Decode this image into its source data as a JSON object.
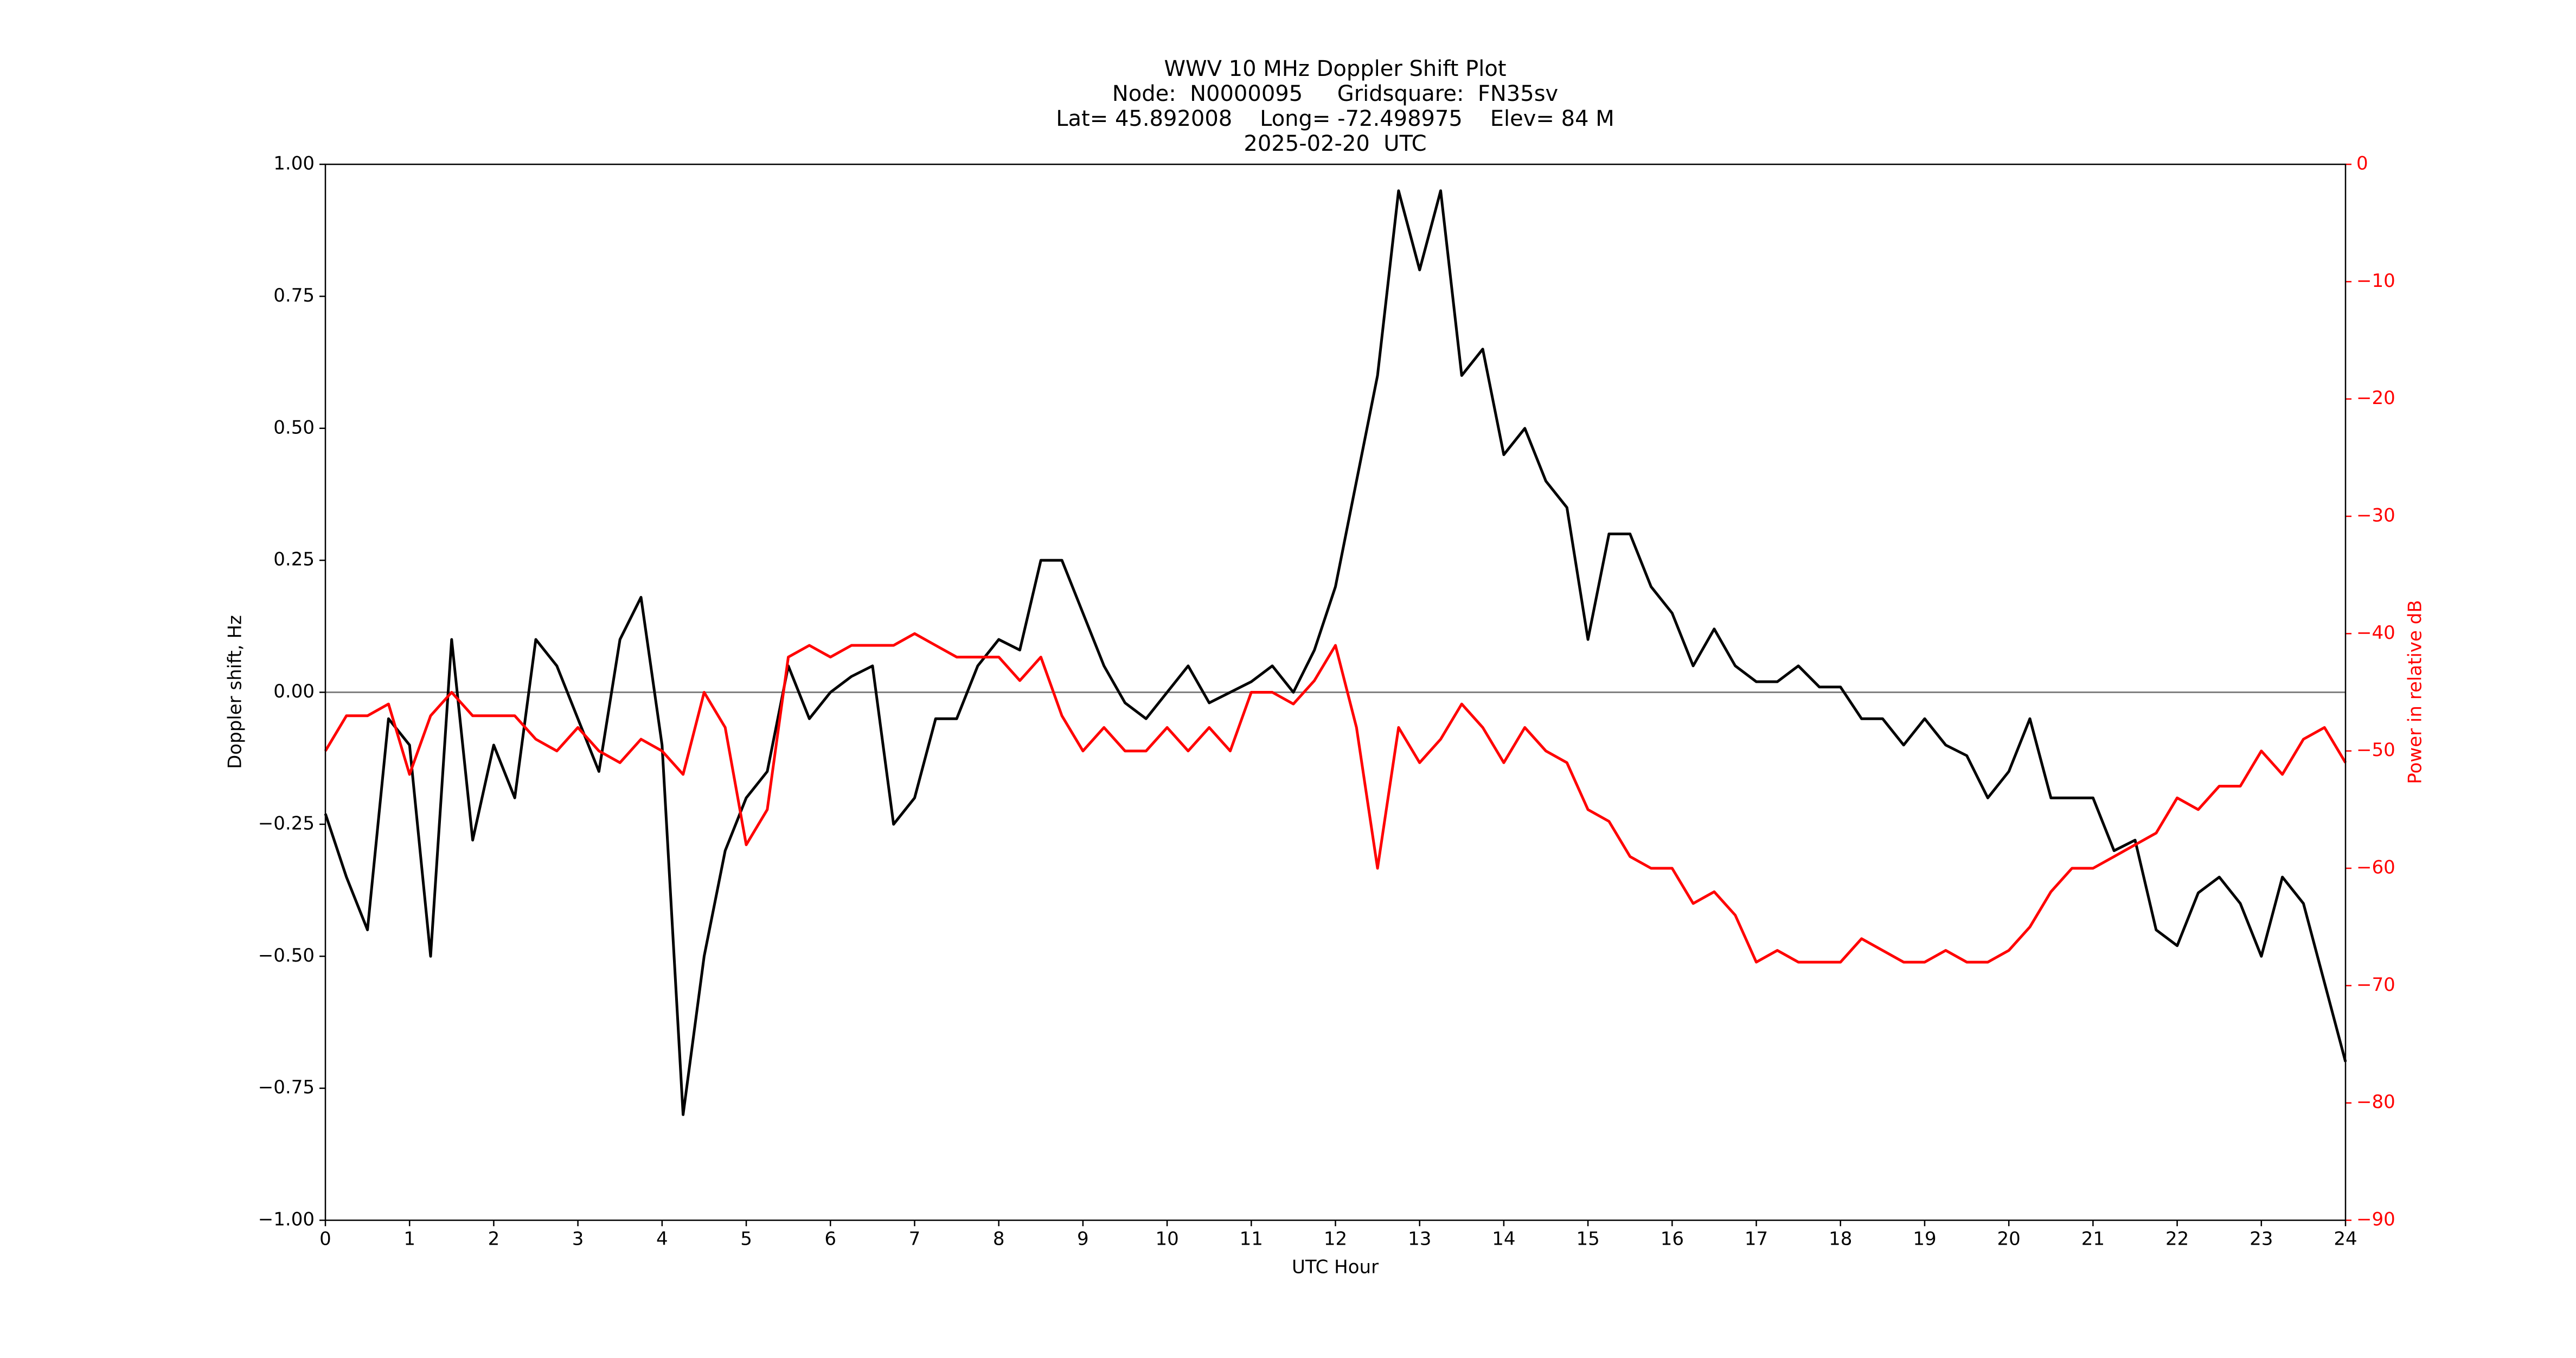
{
  "chart_data": {
    "type": "line",
    "title": [
      "WWV 10 MHz Doppler Shift Plot",
      "Node:  N0000095     Gridsquare:  FN35sv",
      "Lat= 45.892008    Long= -72.498975    Elev= 84 M",
      "2025-02-20  UTC"
    ],
    "x_label": "UTC Hour",
    "y_label": "Doppler shift, Hz",
    "y2_label": "Power in relative dB",
    "x": [
      0,
      0.25,
      0.5,
      0.75,
      1,
      1.25,
      1.5,
      1.75,
      2,
      2.25,
      2.5,
      2.75,
      3,
      3.25,
      3.5,
      3.75,
      4,
      4.25,
      4.5,
      4.75,
      5,
      5.25,
      5.5,
      5.75,
      6,
      6.25,
      6.5,
      6.75,
      7,
      7.25,
      7.5,
      7.75,
      8,
      8.25,
      8.5,
      8.75,
      9,
      9.25,
      9.5,
      9.75,
      10,
      10.25,
      10.5,
      10.75,
      11,
      11.25,
      11.5,
      11.75,
      12,
      12.25,
      12.5,
      12.75,
      13,
      13.25,
      13.5,
      13.75,
      14,
      14.25,
      14.5,
      14.75,
      15,
      15.25,
      15.5,
      15.75,
      16,
      16.25,
      16.5,
      16.75,
      17,
      17.25,
      17.5,
      17.75,
      18,
      18.25,
      18.5,
      18.75,
      19,
      19.25,
      19.5,
      19.75,
      20,
      20.25,
      20.5,
      20.75,
      21,
      21.25,
      21.5,
      21.75,
      22,
      22.25,
      22.5,
      22.75,
      23,
      23.25,
      23.5,
      23.75,
      24
    ],
    "series": [
      {
        "color": "#000000",
        "values": [
          -0.23,
          -0.35,
          -0.45,
          -0.05,
          -0.1,
          -0.5,
          0.1,
          -0.28,
          -0.1,
          -0.2,
          0.1,
          0.05,
          -0.05,
          -0.15,
          0.1,
          0.18,
          -0.1,
          -0.8,
          -0.5,
          -0.3,
          -0.2,
          -0.15,
          0.05,
          -0.05,
          0.0,
          0.03,
          0.05,
          -0.25,
          -0.2,
          -0.05,
          -0.05,
          0.05,
          0.1,
          0.08,
          0.25,
          0.25,
          0.15,
          0.05,
          -0.02,
          -0.05,
          0.0,
          0.05,
          -0.02,
          0.0,
          0.02,
          0.05,
          0.0,
          0.08,
          0.2,
          0.4,
          0.6,
          0.95,
          0.8,
          0.95,
          0.6,
          0.65,
          0.45,
          0.5,
          0.4,
          0.35,
          0.1,
          0.3,
          0.3,
          0.2,
          0.15,
          0.05,
          0.12,
          0.05,
          0.02,
          0.02,
          0.05,
          0.01,
          0.01,
          -0.05,
          -0.05,
          -0.1,
          -0.05,
          -0.1,
          -0.12,
          -0.2,
          -0.15,
          -0.05,
          -0.2,
          -0.2,
          -0.2,
          -0.3,
          -0.28,
          -0.45,
          -0.48,
          -0.38,
          -0.35,
          -0.4,
          -0.5,
          -0.35,
          -0.4,
          -0.55,
          -0.7
        ]
      },
      {
        "color": "#ff0000",
        "axis": "y2",
        "values": [
          -50,
          -47,
          -47,
          -46,
          -52,
          -47,
          -45,
          -47,
          -47,
          -47,
          -49,
          -50,
          -48,
          -50,
          -51,
          -49,
          -50,
          -52,
          -45,
          -48,
          -58,
          -55,
          -42,
          -41,
          -42,
          -41,
          -41,
          -41,
          -40,
          -41,
          -42,
          -42,
          -42,
          -44,
          -42,
          -47,
          -50,
          -48,
          -50,
          -50,
          -48,
          -50,
          -48,
          -50,
          -45,
          -45,
          -46,
          -44,
          -41,
          -48,
          -60,
          -48,
          -51,
          -49,
          -46,
          -48,
          -51,
          -48,
          -50,
          -51,
          -55,
          -56,
          -59,
          -60,
          -60,
          -63,
          -62,
          -64,
          -68,
          -67,
          -68,
          -68,
          -68,
          -66,
          -67,
          -68,
          -68,
          -67,
          -68,
          -68,
          -67,
          -65,
          -62,
          -60,
          -60,
          -59,
          -58,
          -57,
          -54,
          -55,
          -53,
          -53,
          -50,
          -52,
          -49,
          -48,
          -51
        ]
      }
    ],
    "xlim": [
      0,
      24
    ],
    "xticks": [
      0,
      1,
      2,
      3,
      4,
      5,
      6,
      7,
      8,
      9,
      10,
      11,
      12,
      13,
      14,
      15,
      16,
      17,
      18,
      19,
      20,
      21,
      22,
      23,
      24
    ],
    "ylim": [
      -1,
      1
    ],
    "yticks": [
      {
        "value": -1,
        "label": "−1.00"
      },
      {
        "value": -0.75,
        "label": "−0.75"
      },
      {
        "value": -0.5,
        "label": "−0.50"
      },
      {
        "value": -0.25,
        "label": "−0.25"
      },
      {
        "value": 0,
        "label": "0.00"
      },
      {
        "value": 0.25,
        "label": "0.25"
      },
      {
        "value": 0.5,
        "label": "0.50"
      },
      {
        "value": 0.75,
        "label": "0.75"
      },
      {
        "value": 1,
        "label": "1.00"
      }
    ],
    "y2lim": [
      -90,
      0
    ],
    "y2ticks": [
      {
        "value": -90,
        "label": "−90"
      },
      {
        "value": -80,
        "label": "−80"
      },
      {
        "value": -70,
        "label": "−70"
      },
      {
        "value": -60,
        "label": "−60"
      },
      {
        "value": -50,
        "label": "−50"
      },
      {
        "value": -40,
        "label": "−40"
      },
      {
        "value": -30,
        "label": "−30"
      },
      {
        "value": -20,
        "label": "−20"
      },
      {
        "value": -10,
        "label": "−10"
      },
      0
    ],
    "y2_color": "#ff0000",
    "axhline": 0,
    "axhline_color": "#808080"
  }
}
